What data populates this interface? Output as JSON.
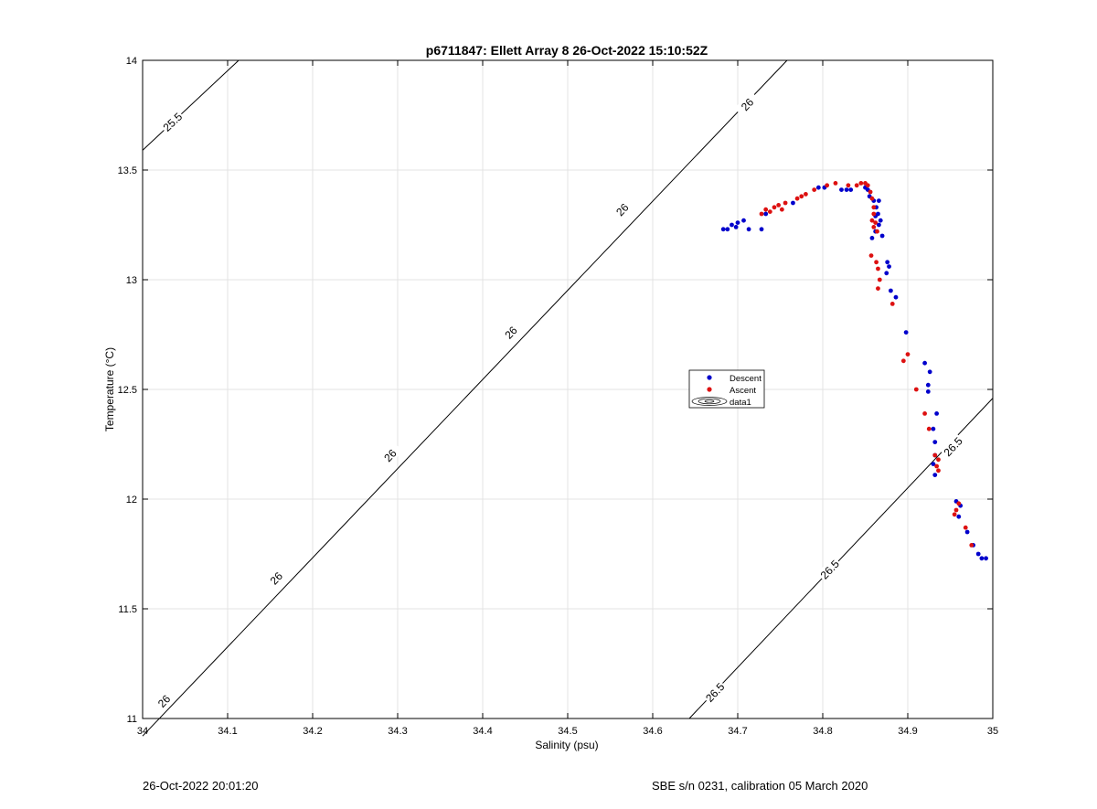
{
  "footer": {
    "timestamp": "26-Oct-2022 20:01:20",
    "instrument": "SBE s/n 0231, calibration 05 March 2020"
  },
  "colors": {
    "descent": "#0000cc",
    "ascent": "#dd1111",
    "grid": "#e3e3e3",
    "axis": "#000000"
  },
  "chart_data": {
    "type": "scatter",
    "title": "p6711847: Ellett Array 8 26-Oct-2022 15:10:52Z",
    "xlabel": "Salinity (psu)",
    "ylabel": "Temperature (°C)",
    "xlim": [
      34,
      35
    ],
    "ylim": [
      11,
      14
    ],
    "xticks": [
      34,
      34.1,
      34.2,
      34.3,
      34.4,
      34.5,
      34.6,
      34.7,
      34.8,
      34.9,
      35
    ],
    "yticks": [
      11,
      11.5,
      12,
      12.5,
      13,
      13.5,
      14
    ],
    "xtick_labels": [
      "34",
      "34.1",
      "34.2",
      "34.3",
      "34.4",
      "34.5",
      "34.6",
      "34.7",
      "34.8",
      "34.9",
      "35"
    ],
    "ytick_labels": [
      "11",
      "11.5",
      "12",
      "12.5",
      "13",
      "13.5",
      "14"
    ],
    "grid": true,
    "legend_position": "center-right",
    "legend": [
      "Descent",
      "Ascent",
      "data1"
    ],
    "contours": [
      {
        "level": "25.5",
        "points": [
          [
            34.0,
            13.59
          ],
          [
            34.113,
            14.0
          ]
        ],
        "labels": [
          {
            "text": "25.5",
            "x": 34.035,
            "y": 13.72
          }
        ]
      },
      {
        "level": "26",
        "points": [
          [
            34.0,
            10.92
          ],
          [
            34.758,
            14.0
          ]
        ],
        "labels": [
          {
            "text": "26",
            "x": 34.025,
            "y": 11.08
          },
          {
            "text": "26",
            "x": 34.157,
            "y": 11.64
          },
          {
            "text": "26",
            "x": 34.291,
            "y": 12.2
          },
          {
            "text": "26",
            "x": 34.433,
            "y": 12.76
          },
          {
            "text": "26",
            "x": 34.564,
            "y": 13.32
          },
          {
            "text": "26",
            "x": 34.711,
            "y": 13.8
          }
        ]
      },
      {
        "level": "26.5",
        "points": [
          [
            34.643,
            11.0
          ],
          [
            35.0,
            12.46
          ]
        ],
        "labels": [
          {
            "text": "26.5",
            "x": 34.673,
            "y": 11.12
          },
          {
            "text": "26.5",
            "x": 34.808,
            "y": 11.68
          },
          {
            "text": "26.5",
            "x": 34.953,
            "y": 12.24
          }
        ]
      }
    ],
    "series": [
      {
        "name": "Descent",
        "points": [
          [
            34.683,
            13.23
          ],
          [
            34.688,
            13.23
          ],
          [
            34.693,
            13.25
          ],
          [
            34.698,
            13.24
          ],
          [
            34.7,
            13.26
          ],
          [
            34.707,
            13.27
          ],
          [
            34.713,
            13.23
          ],
          [
            34.728,
            13.23
          ],
          [
            34.733,
            13.3
          ],
          [
            34.765,
            13.35
          ],
          [
            34.795,
            13.42
          ],
          [
            34.802,
            13.42
          ],
          [
            34.822,
            13.41
          ],
          [
            34.828,
            13.41
          ],
          [
            34.833,
            13.41
          ],
          [
            34.85,
            13.42
          ],
          [
            34.853,
            13.41
          ],
          [
            34.855,
            13.38
          ],
          [
            34.86,
            13.36
          ],
          [
            34.863,
            13.33
          ],
          [
            34.866,
            13.36
          ],
          [
            34.865,
            13.3
          ],
          [
            34.862,
            13.29
          ],
          [
            34.868,
            13.27
          ],
          [
            34.866,
            13.25
          ],
          [
            34.862,
            13.22
          ],
          [
            34.87,
            13.2
          ],
          [
            34.858,
            13.19
          ],
          [
            34.876,
            13.08
          ],
          [
            34.878,
            13.06
          ],
          [
            34.875,
            13.03
          ],
          [
            34.88,
            12.95
          ],
          [
            34.886,
            12.92
          ],
          [
            34.898,
            12.76
          ],
          [
            34.92,
            12.62
          ],
          [
            34.926,
            12.58
          ],
          [
            34.924,
            12.52
          ],
          [
            34.924,
            12.49
          ],
          [
            34.934,
            12.39
          ],
          [
            34.93,
            12.32
          ],
          [
            34.932,
            12.26
          ],
          [
            34.932,
            12.2
          ],
          [
            34.93,
            12.16
          ],
          [
            34.932,
            12.11
          ],
          [
            34.957,
            11.99
          ],
          [
            34.962,
            11.97
          ],
          [
            34.96,
            11.92
          ],
          [
            34.97,
            11.85
          ],
          [
            34.977,
            11.79
          ],
          [
            34.983,
            11.75
          ],
          [
            34.987,
            11.73
          ],
          [
            34.992,
            11.73
          ]
        ]
      },
      {
        "name": "Ascent",
        "points": [
          [
            34.728,
            13.3
          ],
          [
            34.733,
            13.32
          ],
          [
            34.738,
            13.31
          ],
          [
            34.743,
            13.33
          ],
          [
            34.748,
            13.34
          ],
          [
            34.752,
            13.32
          ],
          [
            34.756,
            13.35
          ],
          [
            34.77,
            13.37
          ],
          [
            34.775,
            13.38
          ],
          [
            34.78,
            13.39
          ],
          [
            34.79,
            13.41
          ],
          [
            34.805,
            13.43
          ],
          [
            34.815,
            13.44
          ],
          [
            34.83,
            13.43
          ],
          [
            34.84,
            13.43
          ],
          [
            34.845,
            13.44
          ],
          [
            34.85,
            13.44
          ],
          [
            34.853,
            13.43
          ],
          [
            34.856,
            13.4
          ],
          [
            34.858,
            13.37
          ],
          [
            34.86,
            13.33
          ],
          [
            34.86,
            13.3
          ],
          [
            34.858,
            13.27
          ],
          [
            34.862,
            13.26
          ],
          [
            34.86,
            13.24
          ],
          [
            34.864,
            13.22
          ],
          [
            34.857,
            13.11
          ],
          [
            34.863,
            13.08
          ],
          [
            34.865,
            13.05
          ],
          [
            34.867,
            13.0
          ],
          [
            34.865,
            12.96
          ],
          [
            34.882,
            12.89
          ],
          [
            34.9,
            12.66
          ],
          [
            34.895,
            12.63
          ],
          [
            34.91,
            12.5
          ],
          [
            34.92,
            12.39
          ],
          [
            34.925,
            12.32
          ],
          [
            34.932,
            12.2
          ],
          [
            34.936,
            12.18
          ],
          [
            34.934,
            12.15
          ],
          [
            34.936,
            12.13
          ],
          [
            34.96,
            11.98
          ],
          [
            34.957,
            11.95
          ],
          [
            34.955,
            11.93
          ],
          [
            34.968,
            11.87
          ],
          [
            34.975,
            11.79
          ]
        ]
      }
    ]
  }
}
